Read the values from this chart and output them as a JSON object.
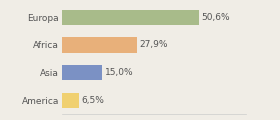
{
  "categories": [
    "Europa",
    "Africa",
    "Asia",
    "America"
  ],
  "values": [
    50.6,
    27.9,
    15.0,
    6.5
  ],
  "labels": [
    "50,6%",
    "27,9%",
    "15,0%",
    "6,5%"
  ],
  "bar_colors": [
    "#a8bb8a",
    "#e8b07a",
    "#7b91c4",
    "#f0d070"
  ],
  "background_color": "#f0ede6",
  "text_color": "#555555",
  "label_fontsize": 6.5,
  "category_fontsize": 6.5,
  "bar_height": 0.55,
  "xlim": [
    0,
    68
  ]
}
